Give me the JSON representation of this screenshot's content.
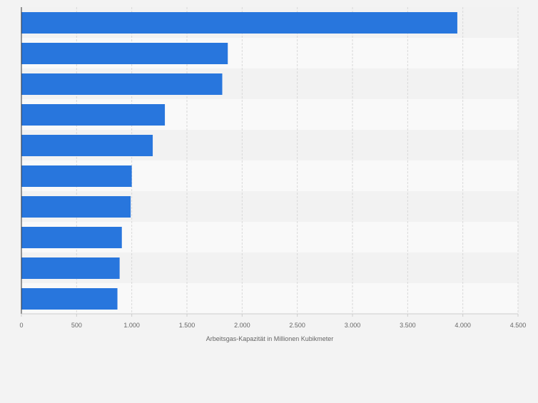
{
  "chart_data": {
    "type": "bar",
    "orientation": "horizontal",
    "categories": [
      "",
      "",
      "",
      "",
      "",
      "",
      "",
      "",
      "",
      ""
    ],
    "values": [
      3950,
      1870,
      1820,
      1300,
      1190,
      1000,
      990,
      910,
      890,
      870
    ],
    "xlabel": "Arbeitsgas-Kapazität in Millionen Kubikmeter",
    "ylabel": "",
    "xlim": [
      0,
      4500
    ],
    "xticks": [
      0,
      500,
      1000,
      1500,
      2000,
      2500,
      3000,
      3500,
      4000,
      4500
    ],
    "xtick_labels": [
      "0",
      "500",
      "1.000",
      "1.500",
      "2.000",
      "2.500",
      "3.000",
      "3.500",
      "4.000",
      "4.500"
    ],
    "grid": "vertical dashed",
    "legend": "none",
    "colors": {
      "bar": "#2876dd",
      "background": "#f3f3f3",
      "band_light": "#f9f9f9",
      "band_dark": "#f2f2f2",
      "grid": "#d8d8d8",
      "axis": "#333333",
      "text": "#666666"
    }
  }
}
